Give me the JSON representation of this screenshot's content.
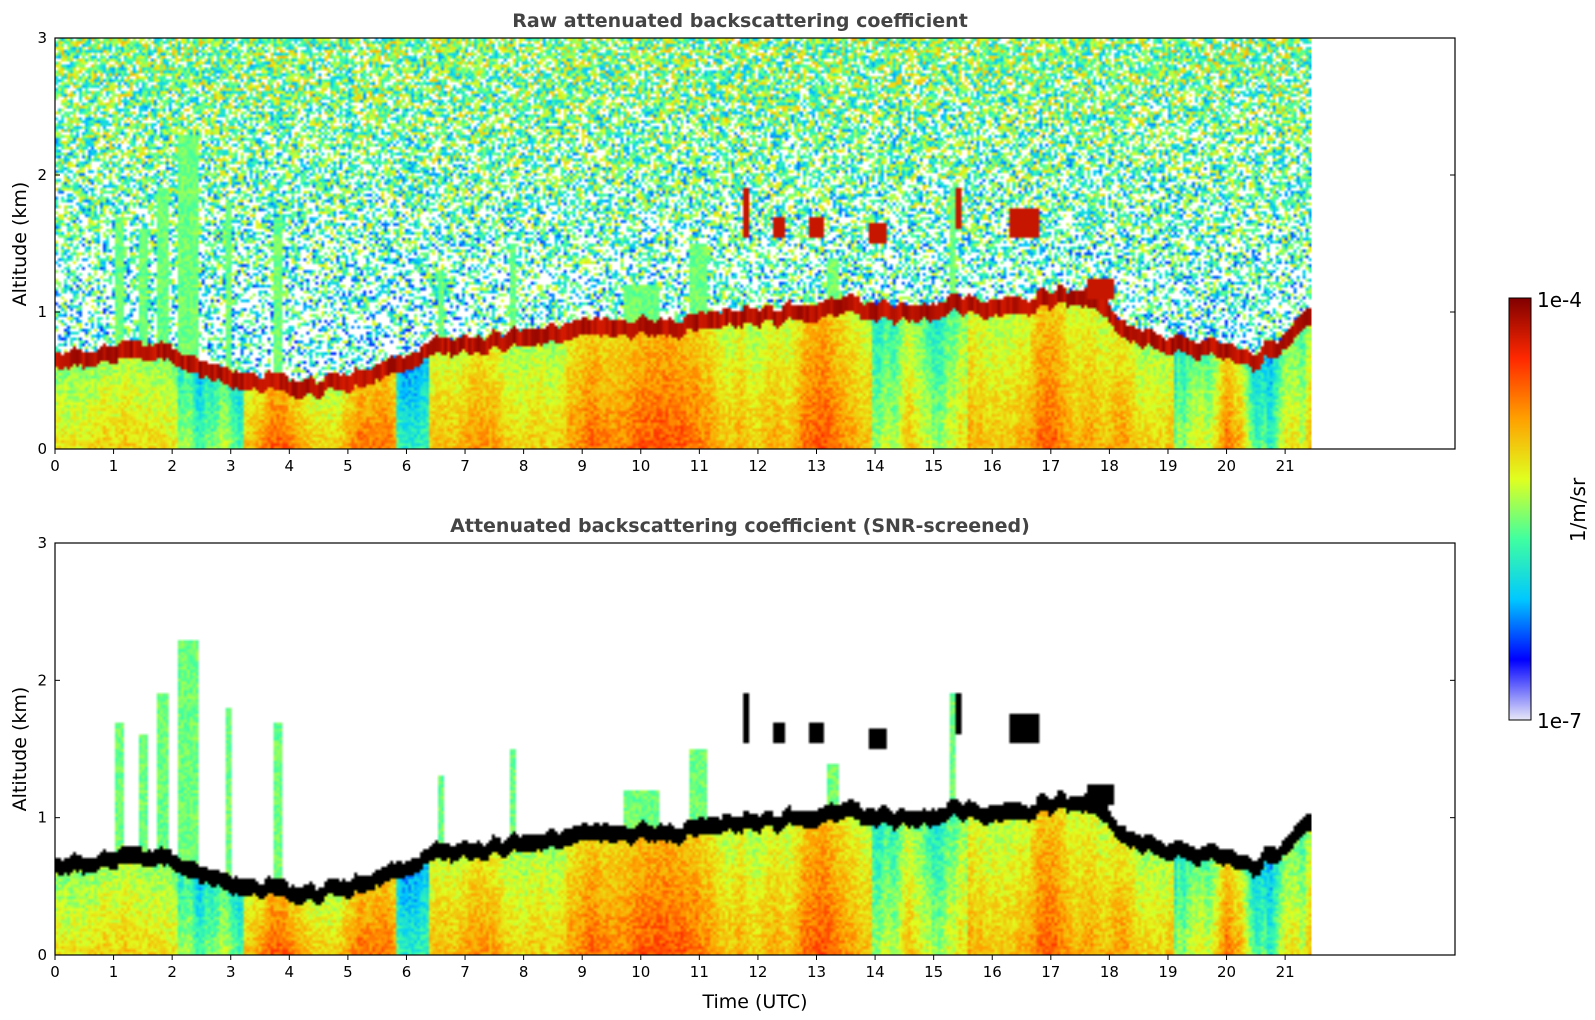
{
  "colors": {
    "frame": "#000000",
    "title": "#444444",
    "colormap_stops": [
      "#e8e8f8",
      "#0000ff",
      "#00c8ff",
      "#40ffa0",
      "#e0ff20",
      "#ffa000",
      "#ff2800",
      "#800000"
    ]
  },
  "colorbar": {
    "label": "1/m/sr",
    "max_label": "1e-4",
    "min_label": "1e-7",
    "range": [
      1e-07,
      0.0001
    ],
    "scale": "log"
  },
  "chart_data": [
    {
      "type": "heatmap",
      "title": "Raw attenuated backscattering coefficient",
      "xlabel": "",
      "ylabel": "Altitude (km)",
      "xlim": [
        0,
        23.9
      ],
      "ylim": [
        0,
        3
      ],
      "data_xmax": 21.45,
      "xticks": [
        "0",
        "1",
        "2",
        "3",
        "4",
        "5",
        "6",
        "7",
        "8",
        "9",
        "10",
        "11",
        "12",
        "13",
        "14",
        "15",
        "16",
        "17",
        "18",
        "19",
        "20",
        "21"
      ],
      "yticks": [
        "0",
        "1",
        "2",
        "3"
      ],
      "screened": false,
      "grid": false
    },
    {
      "type": "heatmap",
      "title": "Attenuated backscattering coefficient (SNR-screened)",
      "xlabel": "Time (UTC)",
      "ylabel": "Altitude (km)",
      "xlim": [
        0,
        23.9
      ],
      "ylim": [
        0,
        3
      ],
      "data_xmax": 21.45,
      "xticks": [
        "0",
        "1",
        "2",
        "3",
        "4",
        "5",
        "6",
        "7",
        "8",
        "9",
        "10",
        "11",
        "12",
        "13",
        "14",
        "15",
        "16",
        "17",
        "18",
        "19",
        "20",
        "21"
      ],
      "yticks": [
        "0",
        "1",
        "2",
        "3"
      ],
      "screened": true,
      "grid": false
    }
  ]
}
